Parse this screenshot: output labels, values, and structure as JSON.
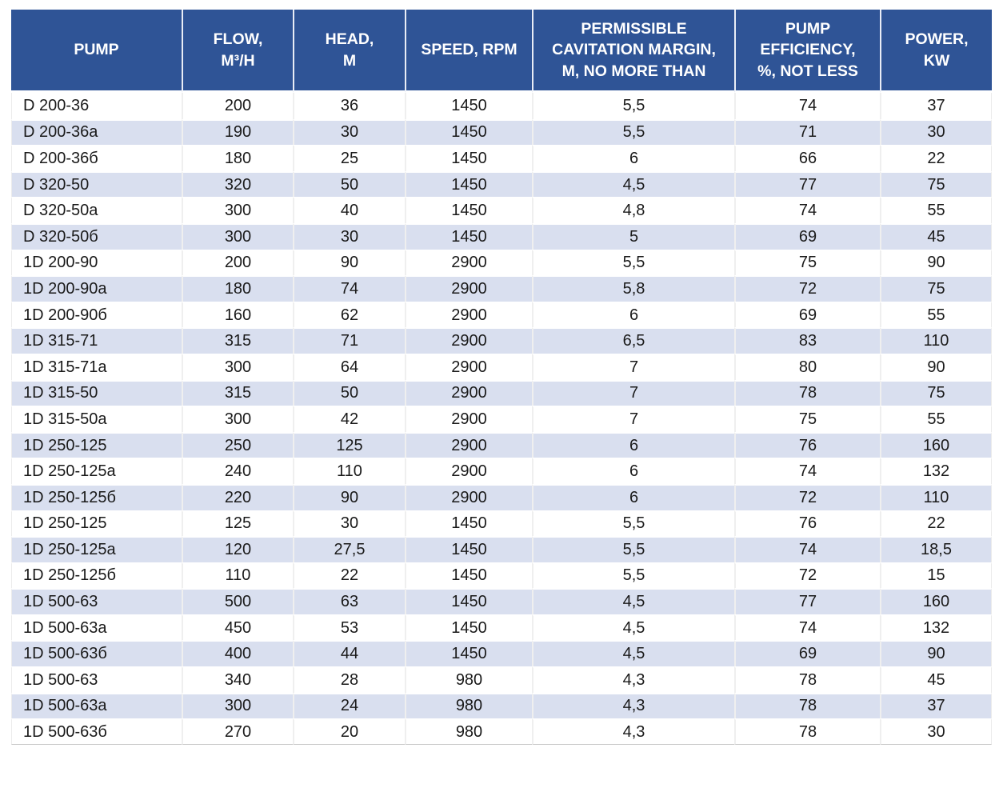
{
  "colors": {
    "header_bg": "#2F5496",
    "header_text": "#FFFFFF",
    "stripe_row_bg": "#D9DFEF",
    "plain_row_bg": "#FFFFFF",
    "body_text": "#1A1A1A"
  },
  "table": {
    "headers": [
      "PUMP",
      "FLOW,\nM³/H",
      "HEAD,\nM",
      "SPEED, RPM",
      "PERMISSIBLE\nCAVITATION MARGIN,\nM, NO MORE THAN",
      "PUMP\nEFFICIENCY,\n%, NOT LESS",
      "POWER,\nKW"
    ],
    "column_keys": [
      "pump",
      "flow",
      "head",
      "speed",
      "cavitation_margin",
      "efficiency",
      "power"
    ],
    "rows": [
      {
        "pump": "D 200-36",
        "flow": "200",
        "head": "36",
        "speed": "1450",
        "cavitation_margin": "5,5",
        "efficiency": "74",
        "power": "37"
      },
      {
        "pump": "D 200-36a",
        "flow": "190",
        "head": "30",
        "speed": "1450",
        "cavitation_margin": "5,5",
        "efficiency": "71",
        "power": "30"
      },
      {
        "pump": "D 200-36б",
        "flow": "180",
        "head": "25",
        "speed": "1450",
        "cavitation_margin": "6",
        "efficiency": "66",
        "power": "22"
      },
      {
        "pump": "D 320-50",
        "flow": "320",
        "head": "50",
        "speed": "1450",
        "cavitation_margin": "4,5",
        "efficiency": "77",
        "power": "75"
      },
      {
        "pump": "D 320-50a",
        "flow": "300",
        "head": "40",
        "speed": "1450",
        "cavitation_margin": "4,8",
        "efficiency": "74",
        "power": "55"
      },
      {
        "pump": "D 320-50б",
        "flow": "300",
        "head": "30",
        "speed": "1450",
        "cavitation_margin": "5",
        "efficiency": "69",
        "power": "45"
      },
      {
        "pump": "1D 200-90",
        "flow": "200",
        "head": "90",
        "speed": "2900",
        "cavitation_margin": "5,5",
        "efficiency": "75",
        "power": "90"
      },
      {
        "pump": "1D 200-90a",
        "flow": "180",
        "head": "74",
        "speed": "2900",
        "cavitation_margin": "5,8",
        "efficiency": "72",
        "power": "75"
      },
      {
        "pump": "1D 200-90б",
        "flow": "160",
        "head": "62",
        "speed": "2900",
        "cavitation_margin": "6",
        "efficiency": "69",
        "power": "55"
      },
      {
        "pump": "1D 315-71",
        "flow": "315",
        "head": "71",
        "speed": "2900",
        "cavitation_margin": "6,5",
        "efficiency": "83",
        "power": "110"
      },
      {
        "pump": "1D 315-71a",
        "flow": "300",
        "head": "64",
        "speed": "2900",
        "cavitation_margin": "7",
        "efficiency": "80",
        "power": "90"
      },
      {
        "pump": "1D 315-50",
        "flow": "315",
        "head": "50",
        "speed": "2900",
        "cavitation_margin": "7",
        "efficiency": "78",
        "power": "75"
      },
      {
        "pump": "1D 315-50a",
        "flow": "300",
        "head": "42",
        "speed": "2900",
        "cavitation_margin": "7",
        "efficiency": "75",
        "power": "55"
      },
      {
        "pump": "1D 250-125",
        "flow": "250",
        "head": "125",
        "speed": "2900",
        "cavitation_margin": "6",
        "efficiency": "76",
        "power": "160"
      },
      {
        "pump": "1D 250-125a",
        "flow": "240",
        "head": "110",
        "speed": "2900",
        "cavitation_margin": "6",
        "efficiency": "74",
        "power": "132"
      },
      {
        "pump": "1D 250-125б",
        "flow": "220",
        "head": "90",
        "speed": "2900",
        "cavitation_margin": "6",
        "efficiency": "72",
        "power": "110"
      },
      {
        "pump": "1D 250-125",
        "flow": "125",
        "head": "30",
        "speed": "1450",
        "cavitation_margin": "5,5",
        "efficiency": "76",
        "power": "22"
      },
      {
        "pump": "1D 250-125a",
        "flow": "120",
        "head": "27,5",
        "speed": "1450",
        "cavitation_margin": "5,5",
        "efficiency": "74",
        "power": "18,5"
      },
      {
        "pump": "1D 250-125б",
        "flow": "110",
        "head": "22",
        "speed": "1450",
        "cavitation_margin": "5,5",
        "efficiency": "72",
        "power": "15"
      },
      {
        "pump": "1D 500-63",
        "flow": "500",
        "head": "63",
        "speed": "1450",
        "cavitation_margin": "4,5",
        "efficiency": "77",
        "power": "160"
      },
      {
        "pump": "1D 500-63a",
        "flow": "450",
        "head": "53",
        "speed": "1450",
        "cavitation_margin": "4,5",
        "efficiency": "74",
        "power": "132"
      },
      {
        "pump": "1D 500-63б",
        "flow": "400",
        "head": "44",
        "speed": "1450",
        "cavitation_margin": "4,5",
        "efficiency": "69",
        "power": "90"
      },
      {
        "pump": "1D 500-63",
        "flow": "340",
        "head": "28",
        "speed": "980",
        "cavitation_margin": "4,3",
        "efficiency": "78",
        "power": "45"
      },
      {
        "pump": "1D 500-63a",
        "flow": "300",
        "head": "24",
        "speed": "980",
        "cavitation_margin": "4,3",
        "efficiency": "78",
        "power": "37"
      },
      {
        "pump": "1D 500-63б",
        "flow": "270",
        "head": "20",
        "speed": "980",
        "cavitation_margin": "4,3",
        "efficiency": "78",
        "power": "30"
      }
    ]
  }
}
